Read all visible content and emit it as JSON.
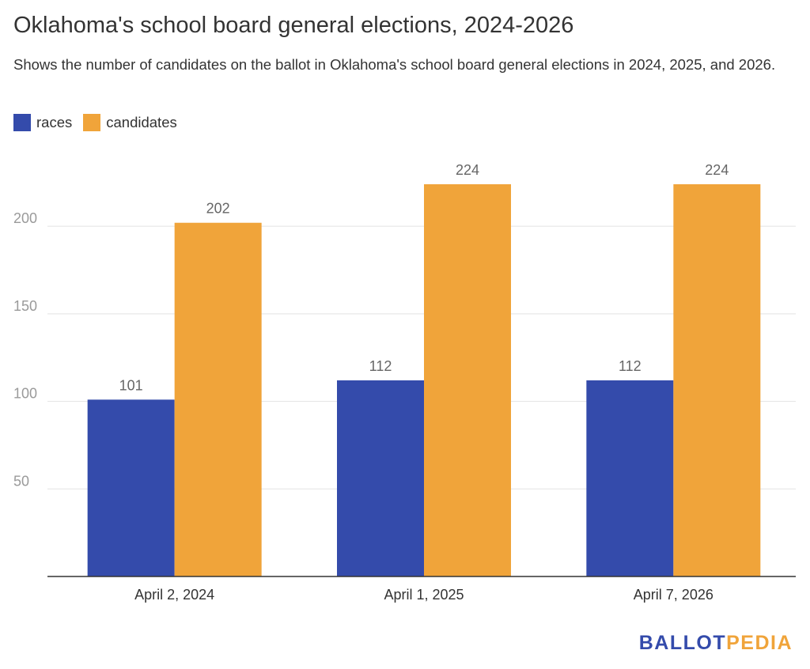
{
  "chart_data": {
    "type": "bar",
    "title": "Oklahoma's school board general elections, 2024-2026",
    "subtitle": "Shows the number of candidates on the ballot in Oklahoma's school board general elections in 2024, 2025, and 2026.",
    "categories": [
      "April 2, 2024",
      "April 1, 2025",
      "April 7, 2026"
    ],
    "series": [
      {
        "name": "races",
        "values": [
          101,
          112,
          112
        ],
        "color": "#344BAB"
      },
      {
        "name": "candidates",
        "values": [
          202,
          224,
          224
        ],
        "color": "#F0A43A"
      }
    ],
    "yticks": [
      50,
      100,
      150,
      200
    ],
    "ylim": [
      0,
      224
    ],
    "xlabel": "",
    "ylabel": "",
    "legend": "top-left",
    "grid": true
  },
  "branding": {
    "logo_part1": "BALLOT",
    "logo_part2": "PEDIA",
    "color1": "#344BAB",
    "color2": "#F0A43A"
  }
}
